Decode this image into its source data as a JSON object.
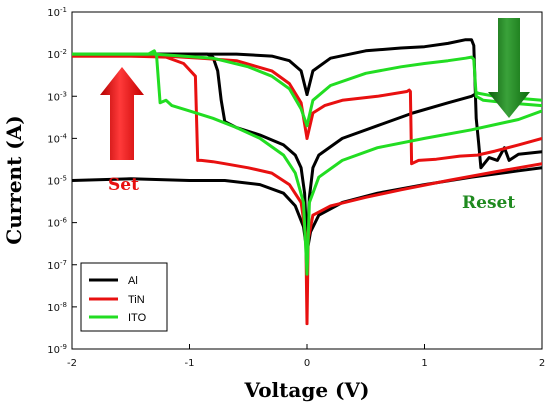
{
  "chart_data": {
    "type": "line",
    "title": "",
    "xlabel": "Voltage (V)",
    "ylabel": "Current (A)",
    "xlim": [
      -2,
      2
    ],
    "ylim_log10": [
      -9,
      -1
    ],
    "yscale": "log",
    "x_ticks": [
      "-2",
      "-1",
      "0",
      "1",
      "2"
    ],
    "y_ticks": [
      {
        "base": "10",
        "exp": "-9"
      },
      {
        "base": "10",
        "exp": "-8"
      },
      {
        "base": "10",
        "exp": "-7"
      },
      {
        "base": "10",
        "exp": "-6"
      },
      {
        "base": "10",
        "exp": "-5"
      },
      {
        "base": "10",
        "exp": "-4"
      },
      {
        "base": "10",
        "exp": "-3"
      },
      {
        "base": "10",
        "exp": "-2"
      },
      {
        "base": "10",
        "exp": "-1"
      }
    ],
    "legend_position": "bottom-left",
    "annotations": {
      "set": {
        "text": "Set",
        "color": "#e81010"
      },
      "reset": {
        "text": "Reset",
        "color": "#1f8a1f"
      }
    },
    "series": [
      {
        "name": "Al",
        "color": "#000000",
        "segments": [
          [
            [
              -2,
              0.01
            ],
            [
              -1.5,
              0.01
            ],
            [
              -1,
              0.01
            ],
            [
              -0.85,
              0.01
            ],
            [
              -0.8,
              0.0085
            ],
            [
              -0.76,
              0.004
            ],
            [
              -0.73,
              0.0008
            ],
            [
              -0.7,
              0.00025
            ],
            [
              -0.6,
              0.00018
            ],
            [
              -0.4,
              0.00012
            ],
            [
              -0.2,
              7e-05
            ],
            [
              -0.1,
              4e-05
            ],
            [
              -0.05,
              2e-05
            ],
            [
              -0.02,
              5e-06
            ],
            [
              0,
              3e-07
            ]
          ],
          [
            [
              0,
              3e-07
            ],
            [
              0.02,
              4e-06
            ],
            [
              0.05,
              2e-05
            ],
            [
              0.1,
              4e-05
            ],
            [
              0.3,
              0.0001
            ],
            [
              0.6,
              0.0002
            ],
            [
              0.9,
              0.0004
            ],
            [
              1.2,
              0.0007
            ],
            [
              1.4,
              0.001
            ],
            [
              1.45,
              0.0012
            ]
          ],
          [
            [
              -2,
              0.01
            ],
            [
              -1,
              0.01
            ],
            [
              -0.6,
              0.01
            ],
            [
              -0.3,
              0.009
            ],
            [
              -0.15,
              0.007
            ],
            [
              -0.05,
              0.004
            ],
            [
              0,
              0.0011
            ]
          ],
          [
            [
              0,
              0.0011
            ],
            [
              0.05,
              0.004
            ],
            [
              0.2,
              0.008
            ],
            [
              0.5,
              0.012
            ],
            [
              0.8,
              0.014
            ],
            [
              1.0,
              0.015
            ],
            [
              1.2,
              0.018
            ],
            [
              1.35,
              0.022
            ],
            [
              1.4,
              0.022
            ],
            [
              1.42,
              0.016
            ],
            [
              1.44,
              0.0003
            ],
            [
              1.46,
              8e-05
            ],
            [
              1.48,
              2e-05
            ],
            [
              1.55,
              3.5e-05
            ],
            [
              1.62,
              3e-05
            ],
            [
              1.68,
              6e-05
            ],
            [
              1.72,
              3e-05
            ],
            [
              1.8,
              4.2e-05
            ],
            [
              1.9,
              4.5e-05
            ],
            [
              2,
              4.8e-05
            ]
          ],
          [
            [
              -2,
              1e-05
            ],
            [
              -1.5,
              1.1e-05
            ],
            [
              -1,
              1e-05
            ],
            [
              -0.7,
              1e-05
            ],
            [
              -0.4,
              8e-06
            ],
            [
              -0.2,
              5e-06
            ],
            [
              -0.1,
              2.5e-06
            ],
            [
              -0.03,
              8e-07
            ],
            [
              0,
              2e-07
            ],
            [
              0.03,
              6e-07
            ],
            [
              0.1,
              1.5e-06
            ],
            [
              0.3,
              3e-06
            ],
            [
              0.6,
              5e-06
            ],
            [
              1.0,
              8e-06
            ],
            [
              1.4,
              1.2e-05
            ],
            [
              1.8,
              1.7e-05
            ],
            [
              2,
              2e-05
            ]
          ]
        ]
      },
      {
        "name": "TiN",
        "color": "#e81010",
        "segments": [
          [
            [
              -2,
              0.009
            ],
            [
              -1.5,
              0.009
            ],
            [
              -1.2,
              0.0085
            ],
            [
              -1.05,
              0.006
            ],
            [
              -0.95,
              0.003
            ],
            [
              -0.93,
              3e-05
            ],
            [
              -0.9,
              3e-05
            ],
            [
              -0.8,
              2.8e-05
            ],
            [
              -0.7,
              2.5e-05
            ],
            [
              -0.5,
              2e-05
            ],
            [
              -0.3,
              1.5e-05
            ],
            [
              -0.15,
              8e-06
            ],
            [
              -0.05,
              3e-06
            ],
            [
              -0.01,
              5e-07
            ],
            [
              0,
              4e-09
            ]
          ],
          [
            [
              -2,
              0.009
            ],
            [
              -1.2,
              0.009
            ],
            [
              -0.9,
              0.008
            ],
            [
              -0.6,
              0.007
            ],
            [
              -0.3,
              0.004
            ],
            [
              -0.15,
              0.002
            ],
            [
              -0.05,
              0.0007
            ],
            [
              0,
              0.0001
            ]
          ],
          [
            [
              0,
              0.0001
            ],
            [
              0.05,
              0.0004
            ],
            [
              0.15,
              0.0006
            ],
            [
              0.3,
              0.0008
            ],
            [
              0.6,
              0.001
            ],
            [
              0.85,
              0.0013
            ],
            [
              0.87,
              0.0014
            ],
            [
              0.88,
              0.0013
            ],
            [
              0.89,
              2.5e-05
            ],
            [
              0.95,
              3e-05
            ],
            [
              1.1,
              3.2e-05
            ],
            [
              1.3,
              3.8e-05
            ],
            [
              1.45,
              4e-05
            ],
            [
              1.6,
              5e-05
            ],
            [
              1.8,
              7e-05
            ],
            [
              2,
              0.0001
            ]
          ],
          [
            [
              0,
              4e-09
            ],
            [
              0.01,
              4e-07
            ],
            [
              0.05,
              1.5e-06
            ],
            [
              0.2,
              2.5e-06
            ],
            [
              0.5,
              4e-06
            ],
            [
              0.8,
              6e-06
            ],
            [
              1.2,
              1e-05
            ],
            [
              1.6,
              1.6e-05
            ],
            [
              2,
              2.5e-05
            ]
          ]
        ]
      },
      {
        "name": "ITO",
        "color": "#22dd22",
        "segments": [
          [
            [
              -2,
              0.01
            ],
            [
              -1.5,
              0.01
            ],
            [
              -1.35,
              0.01
            ],
            [
              -1.3,
              0.012
            ],
            [
              -1.28,
              0.009
            ],
            [
              -1.25,
              0.0007
            ],
            [
              -1.2,
              0.0008
            ],
            [
              -1.15,
              0.0006
            ],
            [
              -1.0,
              0.00045
            ],
            [
              -0.8,
              0.0003
            ],
            [
              -0.6,
              0.00018
            ],
            [
              -0.4,
              0.0001
            ],
            [
              -0.2,
              4e-05
            ],
            [
              -0.1,
              1.5e-05
            ],
            [
              -0.03,
              3e-06
            ],
            [
              0,
              6e-08
            ]
          ],
          [
            [
              -2,
              0.01
            ],
            [
              -1.3,
              0.01
            ],
            [
              -0.8,
              0.008
            ],
            [
              -0.5,
              0.005
            ],
            [
              -0.3,
              0.003
            ],
            [
              -0.15,
              0.0015
            ],
            [
              -0.05,
              0.0005
            ],
            [
              0,
              0.0002
            ]
          ],
          [
            [
              0,
              0.0002
            ],
            [
              0.05,
              0.0008
            ],
            [
              0.2,
              0.0018
            ],
            [
              0.5,
              0.0035
            ],
            [
              0.8,
              0.005
            ],
            [
              1.0,
              0.006
            ],
            [
              1.2,
              0.007
            ],
            [
              1.35,
              0.008
            ],
            [
              1.4,
              0.0085
            ],
            [
              1.42,
              0.0075
            ],
            [
              1.44,
              0.001
            ],
            [
              1.5,
              0.0008
            ],
            [
              1.7,
              0.0007
            ],
            [
              2,
              0.0006
            ]
          ],
          [
            [
              1.44,
              0.0012
            ],
            [
              1.6,
              0.001
            ],
            [
              1.8,
              0.0009
            ],
            [
              2,
              0.0008
            ]
          ],
          [
            [
              0,
              6e-08
            ],
            [
              0.02,
              3e-06
            ],
            [
              0.1,
              1.2e-05
            ],
            [
              0.3,
              3e-05
            ],
            [
              0.6,
              6e-05
            ],
            [
              1.0,
              0.0001
            ],
            [
              1.4,
              0.00016
            ],
            [
              1.8,
              0.00028
            ],
            [
              2,
              0.00045
            ]
          ]
        ]
      }
    ]
  }
}
